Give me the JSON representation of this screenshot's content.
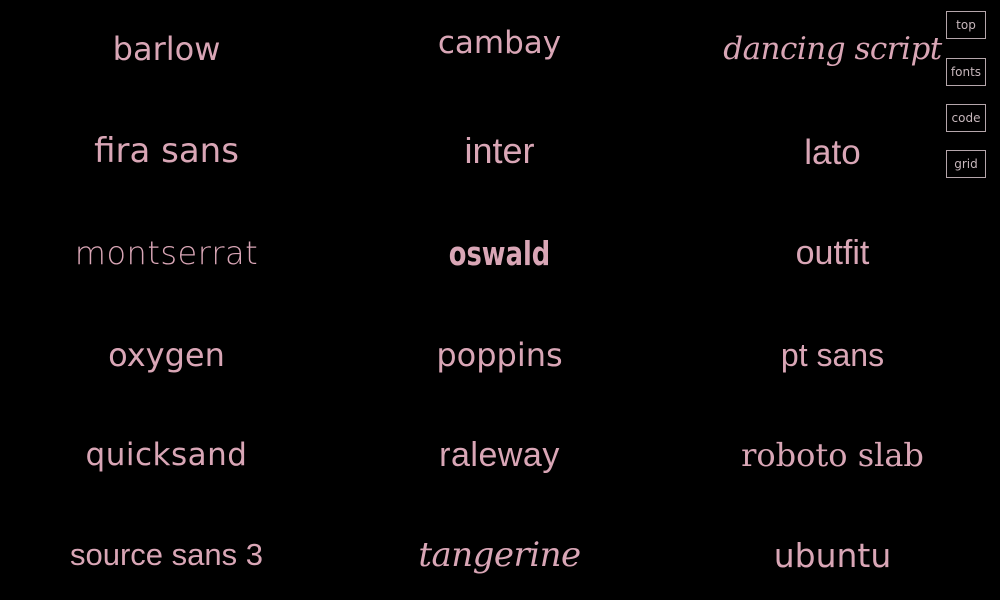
{
  "page": {
    "background": "#000000",
    "text_color": "#d9a6b6",
    "button_border_color": "#b5a6ab"
  },
  "fonts": [
    "barlow",
    "cambay",
    "dancing script",
    "fira sans",
    "inter",
    "lato",
    "montserrat",
    "oswald",
    "outfit",
    "oxygen",
    "poppins",
    "pt sans",
    "quicksand",
    "raleway",
    "roboto slab",
    "source sans 3",
    "tangerine",
    "ubuntu"
  ],
  "nav": {
    "top": "top",
    "fonts": "fonts",
    "code": "code",
    "grid": "grid"
  }
}
